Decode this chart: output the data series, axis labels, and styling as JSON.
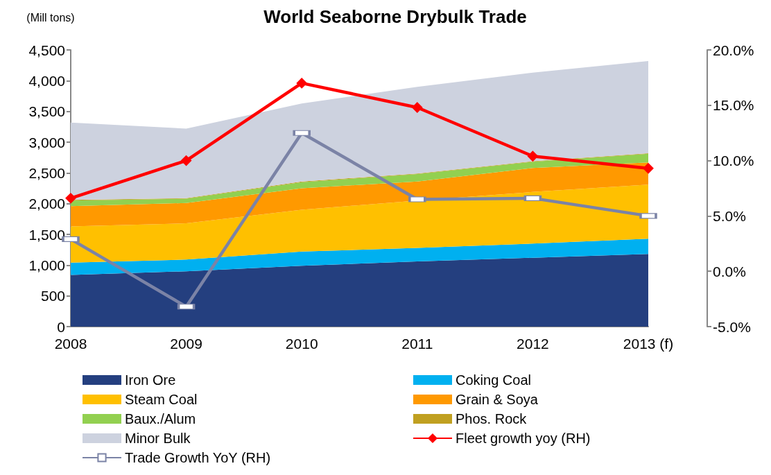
{
  "chart_data": {
    "type": "area",
    "title": "World Seaborne Drybulk Trade",
    "ylabel": "(Mill tons)",
    "stacked": true,
    "legend": "bottom",
    "grid": false,
    "categories": [
      "2008",
      "2009",
      "2010",
      "2011",
      "2012",
      "2013 (f)"
    ],
    "series": [
      {
        "name": "Iron Ore",
        "color": "#243f7f",
        "values": [
          840,
          900,
          990,
          1060,
          1120,
          1180
        ]
      },
      {
        "name": "Coking Coal",
        "color": "#00b0f0",
        "values": [
          200,
          190,
          230,
          220,
          230,
          250
        ]
      },
      {
        "name": "Steam Coal",
        "color": "#ffc000",
        "values": [
          590,
          590,
          680,
          770,
          840,
          880
        ]
      },
      {
        "name": "Grain & Soya",
        "color": "#ff9900",
        "values": [
          330,
          330,
          350,
          310,
          390,
          360
        ]
      },
      {
        "name": "Baux./Alum",
        "color": "#92d050",
        "values": [
          90,
          70,
          100,
          120,
          100,
          140
        ]
      },
      {
        "name": "Phos. Rock",
        "color": "#c0a020",
        "values": [
          10,
          10,
          10,
          10,
          10,
          10
        ]
      },
      {
        "name": "Minor Bulk",
        "color": "#cdd2df",
        "values": [
          1260,
          1130,
          1270,
          1410,
          1440,
          1500
        ]
      },
      {
        "name": "Fleet growth yoy (RH)",
        "type": "line",
        "axis": "y2",
        "marker": "diamond",
        "color": "#ff0000",
        "values": [
          6.6,
          10.0,
          17.0,
          14.8,
          10.4,
          9.3
        ]
      },
      {
        "name": "Trade Growth YoY (RH)",
        "type": "line",
        "axis": "y2",
        "marker": "square",
        "color": "#7b83a6",
        "values": [
          2.9,
          -3.2,
          12.5,
          6.5,
          6.6,
          5.0
        ]
      }
    ],
    "ylim": [
      0,
      4500
    ],
    "yticks": [
      {
        "value": 0,
        "label": "0"
      },
      {
        "value": 500,
        "label": "500"
      },
      {
        "value": 1000,
        "label": "1,000"
      },
      {
        "value": 1500,
        "label": "1,500"
      },
      {
        "value": 2000,
        "label": "2,000"
      },
      {
        "value": 2500,
        "label": "2,500"
      },
      {
        "value": 3000,
        "label": "3,000"
      },
      {
        "value": 3500,
        "label": "3,500"
      },
      {
        "value": 4000,
        "label": "4,000"
      },
      {
        "value": 4500,
        "label": "4,500"
      }
    ],
    "y2lim": [
      -5,
      20
    ],
    "y2ticks": [
      {
        "value": -5,
        "label": "-5.0%"
      },
      {
        "value": 0,
        "label": "0.0%"
      },
      {
        "value": 5,
        "label": "5.0%"
      },
      {
        "value": 10,
        "label": "10.0%"
      },
      {
        "value": 15,
        "label": "15.0%"
      },
      {
        "value": 20,
        "label": "20.0%"
      }
    ]
  }
}
